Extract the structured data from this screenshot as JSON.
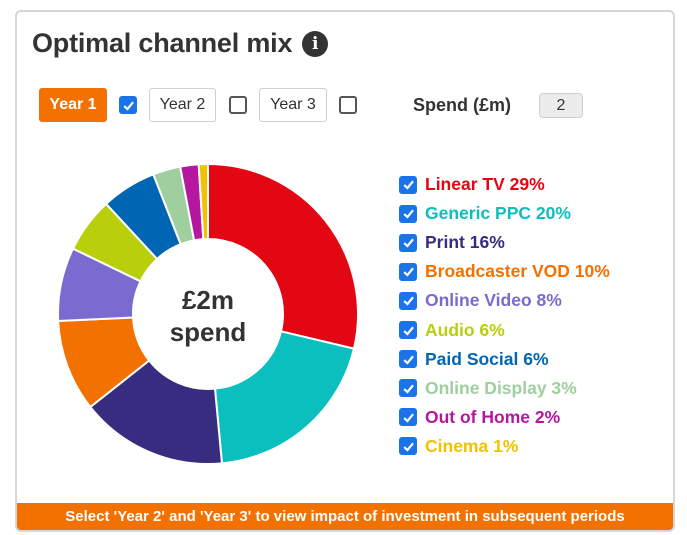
{
  "header": {
    "title": "Optimal channel mix",
    "info_icon": "info-icon"
  },
  "controls": {
    "years": [
      {
        "label": "Year 1",
        "active": true,
        "checked": true
      },
      {
        "label": "Year 2",
        "active": false,
        "checked": false
      },
      {
        "label": "Year 3",
        "active": false,
        "checked": false
      }
    ],
    "spend_label": "Spend (£m)",
    "spend_value": "2"
  },
  "donut": {
    "center_line1": "£2m",
    "center_line2": "spend"
  },
  "chart_data": {
    "type": "pie",
    "categories": [
      "Linear TV",
      "Generic PPC",
      "Print",
      "Broadcaster VOD",
      "Online Video",
      "Audio",
      "Paid Social",
      "Online Display",
      "Out of Home",
      "Cinema"
    ],
    "values": [
      29,
      20,
      16,
      10,
      8,
      6,
      6,
      3,
      2,
      1
    ],
    "colors": [
      "#e30613",
      "#0bbfbf",
      "#372c80",
      "#f37100",
      "#7b6acf",
      "#b8cf0a",
      "#0066b3",
      "#9fcf9f",
      "#b5179e",
      "#f2c200"
    ],
    "legend": [
      "Linear TV 29%",
      "Generic PPC 20%",
      "Print 16%",
      "Broadcaster VOD 10%",
      "Online Video 8%",
      "Audio 6%",
      "Paid Social 6%",
      "Online Display 3%",
      "Out of Home 2%",
      "Cinema 1%"
    ],
    "legend_position": "right"
  },
  "footer": {
    "text": "Select 'Year 2' and 'Year 3' to view impact of investment in subsequent periods"
  }
}
